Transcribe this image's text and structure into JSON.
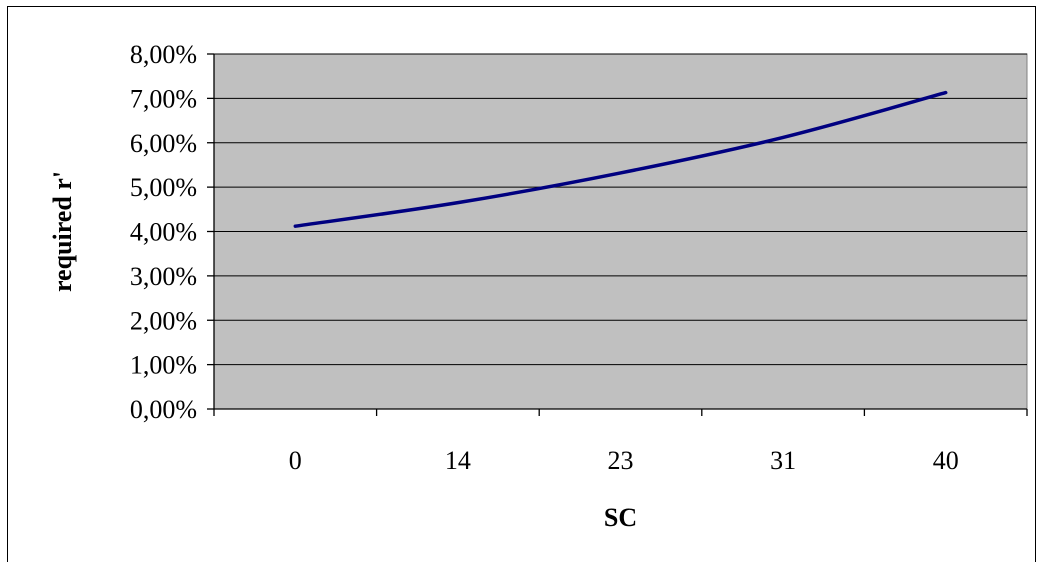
{
  "chart_data": {
    "type": "line",
    "title": "",
    "xlabel": "SC",
    "ylabel": "required r'",
    "categories": [
      "0",
      "14",
      "23",
      "31",
      "40"
    ],
    "series": [
      {
        "values": [
          0.0412,
          0.0465,
          0.0532,
          0.0612,
          0.0713
        ],
        "color": "#000080"
      }
    ],
    "ylim": [
      0,
      0.08
    ],
    "y_ticks": [
      0,
      0.01,
      0.02,
      0.03,
      0.04,
      0.05,
      0.06,
      0.07,
      0.08
    ],
    "y_tick_labels": [
      "0,00%",
      "1,00%",
      "2,00%",
      "3,00%",
      "4,00%",
      "5,00%",
      "6,00%",
      "7,00%",
      "8,00%"
    ],
    "grid": true,
    "plot_background": "#C0C0C0",
    "legend": "none"
  }
}
